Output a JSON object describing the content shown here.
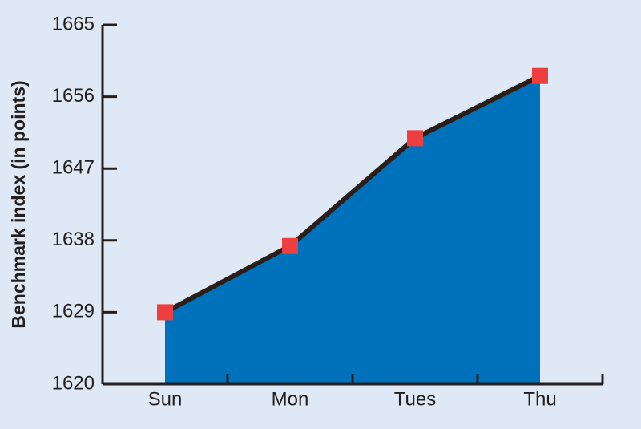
{
  "chart_data": {
    "type": "area",
    "y_label": "Benchmark index (in points)",
    "categories": [
      "Sun",
      "Mon",
      "Tues",
      "Thu"
    ],
    "values": [
      1629,
      1637.3,
      1650.8,
      1658.6
    ],
    "fill_color": "#0072bc",
    "line_color": "#2b1d17",
    "marker_color": "#ef3e3e",
    "ylim": [
      1620,
      1665
    ],
    "yticks": [
      1620,
      1629,
      1638,
      1647,
      1656,
      1665
    ],
    "grid": false
  }
}
